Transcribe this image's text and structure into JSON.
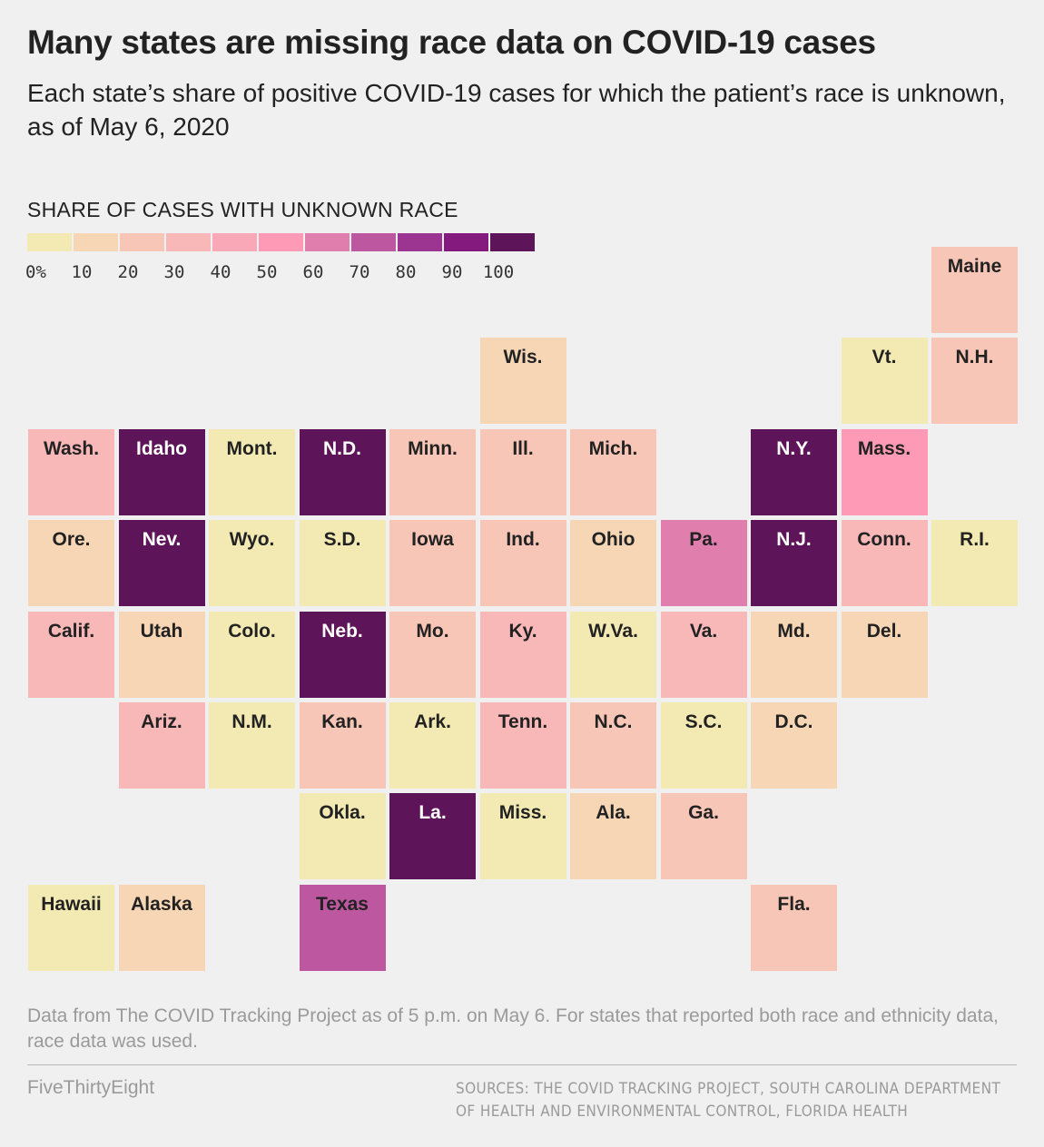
{
  "title": "Many states are missing race data on COVID-19 cases",
  "subtitle": "Each state’s share of positive COVID-19 cases for which the patient’s race is unknown, as of May 6, 2020",
  "legend": {
    "title": "SHARE OF CASES WITH UNKNOWN RACE",
    "ticks": [
      "0%",
      "10",
      "20",
      "30",
      "40",
      "50",
      "60",
      "70",
      "80",
      "90",
      "100"
    ],
    "colors": [
      "#f3e9b2",
      "#f6d6b5",
      "#f8c6b7",
      "#f8b8b8",
      "#f9a8b8",
      "#ff9ab6",
      "#e07fad",
      "#bd58a0",
      "#9b3591",
      "#851a7e",
      "#5e1458"
    ]
  },
  "chart_data": {
    "type": "tile-map",
    "metric": "SHARE OF CASES WITH UNKNOWN RACE",
    "bins": [
      "0-10",
      "10-20",
      "20-30",
      "30-40",
      "40-50",
      "50-60",
      "60-70",
      "70-80",
      "80-90",
      "90-100"
    ],
    "states": [
      {
        "name": "Maine",
        "bin": "20-30",
        "row": 0,
        "col": 10
      },
      {
        "name": "Wis.",
        "bin": "10-20",
        "row": 1,
        "col": 5
      },
      {
        "name": "Vt.",
        "bin": "0-10",
        "row": 1,
        "col": 9
      },
      {
        "name": "N.H.",
        "bin": "20-30",
        "row": 1,
        "col": 10
      },
      {
        "name": "Wash.",
        "bin": "30-40",
        "row": 2,
        "col": 0
      },
      {
        "name": "Idaho",
        "bin": "90-100",
        "row": 2,
        "col": 1
      },
      {
        "name": "Mont.",
        "bin": "0-10",
        "row": 2,
        "col": 2
      },
      {
        "name": "N.D.",
        "bin": "90-100",
        "row": 2,
        "col": 3
      },
      {
        "name": "Minn.",
        "bin": "20-30",
        "row": 2,
        "col": 4
      },
      {
        "name": "Ill.",
        "bin": "20-30",
        "row": 2,
        "col": 5
      },
      {
        "name": "Mich.",
        "bin": "20-30",
        "row": 2,
        "col": 6
      },
      {
        "name": "N.Y.",
        "bin": "90-100",
        "row": 2,
        "col": 8
      },
      {
        "name": "Mass.",
        "bin": "50-60",
        "row": 2,
        "col": 9
      },
      {
        "name": "Ore.",
        "bin": "10-20",
        "row": 3,
        "col": 0
      },
      {
        "name": "Nev.",
        "bin": "90-100",
        "row": 3,
        "col": 1
      },
      {
        "name": "Wyo.",
        "bin": "0-10",
        "row": 3,
        "col": 2
      },
      {
        "name": "S.D.",
        "bin": "0-10",
        "row": 3,
        "col": 3
      },
      {
        "name": "Iowa",
        "bin": "20-30",
        "row": 3,
        "col": 4
      },
      {
        "name": "Ind.",
        "bin": "20-30",
        "row": 3,
        "col": 5
      },
      {
        "name": "Ohio",
        "bin": "10-20",
        "row": 3,
        "col": 6
      },
      {
        "name": "Pa.",
        "bin": "60-70",
        "row": 3,
        "col": 7
      },
      {
        "name": "N.J.",
        "bin": "90-100",
        "row": 3,
        "col": 8
      },
      {
        "name": "Conn.",
        "bin": "30-40",
        "row": 3,
        "col": 9
      },
      {
        "name": "R.I.",
        "bin": "0-10",
        "row": 3,
        "col": 10
      },
      {
        "name": "Calif.",
        "bin": "30-40",
        "row": 4,
        "col": 0
      },
      {
        "name": "Utah",
        "bin": "10-20",
        "row": 4,
        "col": 1
      },
      {
        "name": "Colo.",
        "bin": "0-10",
        "row": 4,
        "col": 2
      },
      {
        "name": "Neb.",
        "bin": "90-100",
        "row": 4,
        "col": 3
      },
      {
        "name": "Mo.",
        "bin": "20-30",
        "row": 4,
        "col": 4
      },
      {
        "name": "Ky.",
        "bin": "30-40",
        "row": 4,
        "col": 5
      },
      {
        "name": "W.Va.",
        "bin": "0-10",
        "row": 4,
        "col": 6
      },
      {
        "name": "Va.",
        "bin": "30-40",
        "row": 4,
        "col": 7
      },
      {
        "name": "Md.",
        "bin": "10-20",
        "row": 4,
        "col": 8
      },
      {
        "name": "Del.",
        "bin": "10-20",
        "row": 4,
        "col": 9
      },
      {
        "name": "Ariz.",
        "bin": "30-40",
        "row": 5,
        "col": 1
      },
      {
        "name": "N.M.",
        "bin": "0-10",
        "row": 5,
        "col": 2
      },
      {
        "name": "Kan.",
        "bin": "20-30",
        "row": 5,
        "col": 3
      },
      {
        "name": "Ark.",
        "bin": "0-10",
        "row": 5,
        "col": 4
      },
      {
        "name": "Tenn.",
        "bin": "30-40",
        "row": 5,
        "col": 5
      },
      {
        "name": "N.C.",
        "bin": "20-30",
        "row": 5,
        "col": 6
      },
      {
        "name": "S.C.",
        "bin": "0-10",
        "row": 5,
        "col": 7
      },
      {
        "name": "D.C.",
        "bin": "10-20",
        "row": 5,
        "col": 8
      },
      {
        "name": "Okla.",
        "bin": "0-10",
        "row": 6,
        "col": 3
      },
      {
        "name": "La.",
        "bin": "90-100",
        "row": 6,
        "col": 4
      },
      {
        "name": "Miss.",
        "bin": "0-10",
        "row": 6,
        "col": 5
      },
      {
        "name": "Ala.",
        "bin": "10-20",
        "row": 6,
        "col": 6
      },
      {
        "name": "Ga.",
        "bin": "20-30",
        "row": 6,
        "col": 7
      },
      {
        "name": "Hawaii",
        "bin": "0-10",
        "row": 7,
        "col": 0
      },
      {
        "name": "Alaska",
        "bin": "10-20",
        "row": 7,
        "col": 1
      },
      {
        "name": "Texas",
        "bin": "70-80",
        "row": 7,
        "col": 3
      },
      {
        "name": "Fla.",
        "bin": "20-30",
        "row": 7,
        "col": 8
      }
    ]
  },
  "footer": {
    "note": "Data from The COVID Tracking Project as of 5 p.m. on May 6. For states that reported both race and ethnicity data, race data was used.",
    "brand": "FiveThirtyEight",
    "sources": "SOURCES: THE COVID TRACKING PROJECT, SOUTH CAROLINA DEPARTMENT OF HEALTH AND ENVIRONMENTAL CONTROL, FLORIDA HEALTH"
  }
}
